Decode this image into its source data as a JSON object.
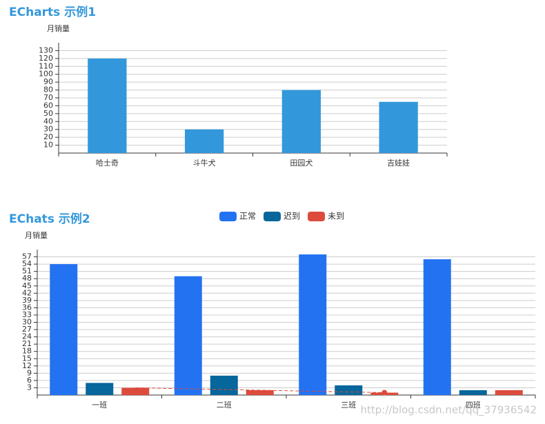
{
  "chart_data": [
    {
      "type": "bar",
      "title": "ECharts 示例1",
      "y_axis_name": "月销量",
      "categories": [
        "哈士奇",
        "斗牛犬",
        "田园犬",
        "吉娃娃"
      ],
      "values": [
        120,
        30,
        80,
        65
      ],
      "color": "#3398db",
      "ylim": [
        0,
        140
      ],
      "yticks": [
        10,
        20,
        30,
        40,
        50,
        60,
        70,
        80,
        90,
        100,
        110,
        120,
        130
      ],
      "grid": true
    },
    {
      "type": "bar",
      "title": "EChats 示例2",
      "y_axis_name": "月销量",
      "categories": [
        "一班",
        "二班",
        "三班",
        "四班"
      ],
      "series": [
        {
          "name": "正常",
          "color": "#2372f2",
          "values": [
            54,
            49,
            58,
            56
          ]
        },
        {
          "name": "迟到",
          "color": "#07669c",
          "values": [
            5,
            8,
            4,
            2
          ]
        },
        {
          "name": "未到",
          "color": "#dc4b3c",
          "values": [
            3,
            2,
            1,
            2
          ]
        }
      ],
      "ylim": [
        0,
        60
      ],
      "yticks": [
        3,
        6,
        9,
        12,
        15,
        18,
        21,
        24,
        27,
        30,
        33,
        36,
        39,
        42,
        45,
        48,
        51,
        54,
        57
      ],
      "grid": true,
      "legend": "top"
    }
  ],
  "watermark": "http://blog.csdn.net/qq_37936542"
}
